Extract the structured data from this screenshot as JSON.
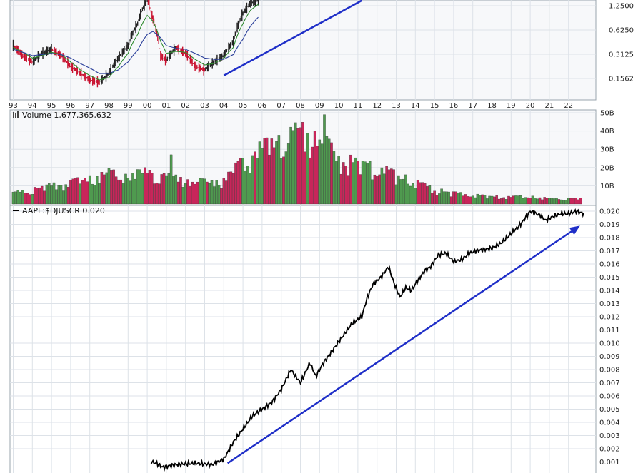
{
  "colors": {
    "panel_bg": "#f7f8fa",
    "panel_border": "#9aa4ae",
    "grid": "#dde2e8",
    "price_up": "#222222",
    "price_down": "#c8102e",
    "ma_short": "#2e8b2e",
    "ma_long": "#2a3f9a",
    "volume_up": "#4f9a4f",
    "volume_down": "#c8265a",
    "ratio_line": "#000000",
    "trend_arrow": "#1f2fc8"
  },
  "x_axis": {
    "year_labels": [
      "93",
      "94",
      "95",
      "96",
      "97",
      "98",
      "99",
      "00",
      "01",
      "02",
      "03",
      "04",
      "05",
      "06",
      "07",
      "08",
      "09",
      "10",
      "11",
      "12",
      "13",
      "14",
      "15",
      "16",
      "17",
      "18",
      "19",
      "20",
      "21",
      "22"
    ]
  },
  "chart_data": [
    {
      "type": "line",
      "name": "price-panel",
      "scale": "log",
      "y_tick_labels": [
        "1.2500",
        "0.6250",
        "0.3125",
        "0.1562"
      ],
      "y_ticks": [
        1.25,
        0.625,
        0.3125,
        0.1562
      ],
      "x": [
        93.0,
        93.5,
        94.0,
        94.5,
        95.0,
        95.5,
        96.0,
        96.5,
        97.0,
        97.5,
        98.0,
        98.5,
        99.0,
        99.5,
        100.0,
        100.3,
        100.7,
        101.0,
        101.5,
        102.0,
        102.5,
        103.0,
        103.5,
        104.0,
        104.5,
        105.0,
        105.4,
        105.8
      ],
      "series": [
        {
          "role": "price",
          "values": [
            0.4,
            0.3,
            0.25,
            0.32,
            0.36,
            0.3,
            0.22,
            0.18,
            0.15,
            0.14,
            0.18,
            0.28,
            0.4,
            0.75,
            1.5,
            0.85,
            0.3,
            0.26,
            0.38,
            0.32,
            0.22,
            0.2,
            0.25,
            0.3,
            0.45,
            1.0,
            1.35,
            1.45
          ]
        },
        {
          "role": "ma-short",
          "values": [
            0.38,
            0.33,
            0.28,
            0.3,
            0.33,
            0.31,
            0.25,
            0.2,
            0.17,
            0.15,
            0.16,
            0.22,
            0.32,
            0.55,
            0.95,
            0.8,
            0.45,
            0.32,
            0.34,
            0.33,
            0.27,
            0.23,
            0.24,
            0.28,
            0.38,
            0.75,
            1.1,
            1.3
          ]
        },
        {
          "role": "ma-long",
          "values": [
            0.36,
            0.33,
            0.3,
            0.31,
            0.32,
            0.31,
            0.28,
            0.24,
            0.21,
            0.18,
            0.18,
            0.2,
            0.25,
            0.35,
            0.55,
            0.6,
            0.5,
            0.4,
            0.37,
            0.36,
            0.32,
            0.28,
            0.27,
            0.27,
            0.31,
            0.48,
            0.7,
            0.9
          ]
        }
      ],
      "trendline": {
        "x": [
          104.0,
          111.2
        ],
        "y": [
          0.17,
          1.45
        ]
      }
    },
    {
      "type": "bar",
      "name": "volume-panel",
      "legend": "Volume 1,677,365,632",
      "y_tick_labels": [
        "50B",
        "40B",
        "30B",
        "20B",
        "10B"
      ],
      "y_ticks": [
        50,
        40,
        30,
        20,
        10
      ],
      "unit": "B",
      "x": [
        93,
        94,
        95,
        96,
        97,
        98,
        99,
        100,
        101,
        102,
        103,
        104,
        105,
        106,
        107,
        108,
        109,
        110,
        111,
        112,
        113,
        114,
        115,
        116,
        117,
        118,
        119,
        120,
        121,
        122
      ],
      "values": [
        6,
        8,
        10,
        12,
        14,
        17,
        15,
        18,
        15,
        13,
        12,
        13,
        24,
        31,
        35,
        40,
        36,
        26,
        22,
        20,
        16,
        12,
        8,
        6,
        5,
        4,
        4,
        4,
        3,
        3
      ]
    },
    {
      "type": "line",
      "name": "ratio-panel",
      "legend": "AAPL:$DJUSCR 0.020",
      "y_tick_labels": [
        "0.020",
        "0.019",
        "0.018",
        "0.017",
        "0.016",
        "0.015",
        "0.014",
        "0.013",
        "0.012",
        "0.011",
        "0.010",
        "0.009",
        "0.008",
        "0.007",
        "0.006",
        "0.005",
        "0.004",
        "0.003",
        "0.002",
        "0.001"
      ],
      "y_ticks": [
        0.02,
        0.019,
        0.018,
        0.017,
        0.016,
        0.015,
        0.014,
        0.013,
        0.012,
        0.011,
        0.01,
        0.009,
        0.008,
        0.007,
        0.006,
        0.005,
        0.004,
        0.003,
        0.002,
        0.001
      ],
      "x": [
        100.2,
        100.5,
        100.8,
        101.5,
        102.5,
        103.4,
        104.0,
        104.5,
        105.0,
        105.5,
        106.0,
        106.5,
        107.0,
        107.5,
        108.0,
        108.5,
        108.8,
        109.2,
        109.7,
        110.2,
        110.7,
        111.2,
        111.5,
        111.8,
        112.2,
        112.6,
        112.9,
        113.2,
        113.5,
        113.8,
        114.1,
        114.5,
        114.8,
        115.2,
        115.6,
        116.0,
        116.4,
        116.8,
        117.2,
        117.6,
        118.0,
        118.5,
        119.0,
        119.5,
        120.0,
        120.5,
        120.8,
        121.2,
        121.6,
        122.0,
        122.4,
        122.8
      ],
      "values": [
        0.001,
        0.0009,
        0.0006,
        0.0008,
        0.0009,
        0.0008,
        0.0012,
        0.0025,
        0.0035,
        0.0045,
        0.005,
        0.0055,
        0.0065,
        0.008,
        0.007,
        0.0085,
        0.0075,
        0.0085,
        0.0095,
        0.0105,
        0.0115,
        0.012,
        0.0135,
        0.0145,
        0.015,
        0.0158,
        0.0145,
        0.0135,
        0.0142,
        0.014,
        0.0147,
        0.0155,
        0.0158,
        0.0167,
        0.0168,
        0.0162,
        0.0163,
        0.0168,
        0.017,
        0.0171,
        0.0172,
        0.0176,
        0.0183,
        0.019,
        0.02,
        0.0197,
        0.0193,
        0.0196,
        0.0198,
        0.0198,
        0.02,
        0.0198
      ],
      "trendline": {
        "x": [
          104.2,
          122.6
        ],
        "y": [
          0.0009,
          0.0189
        ]
      }
    }
  ]
}
